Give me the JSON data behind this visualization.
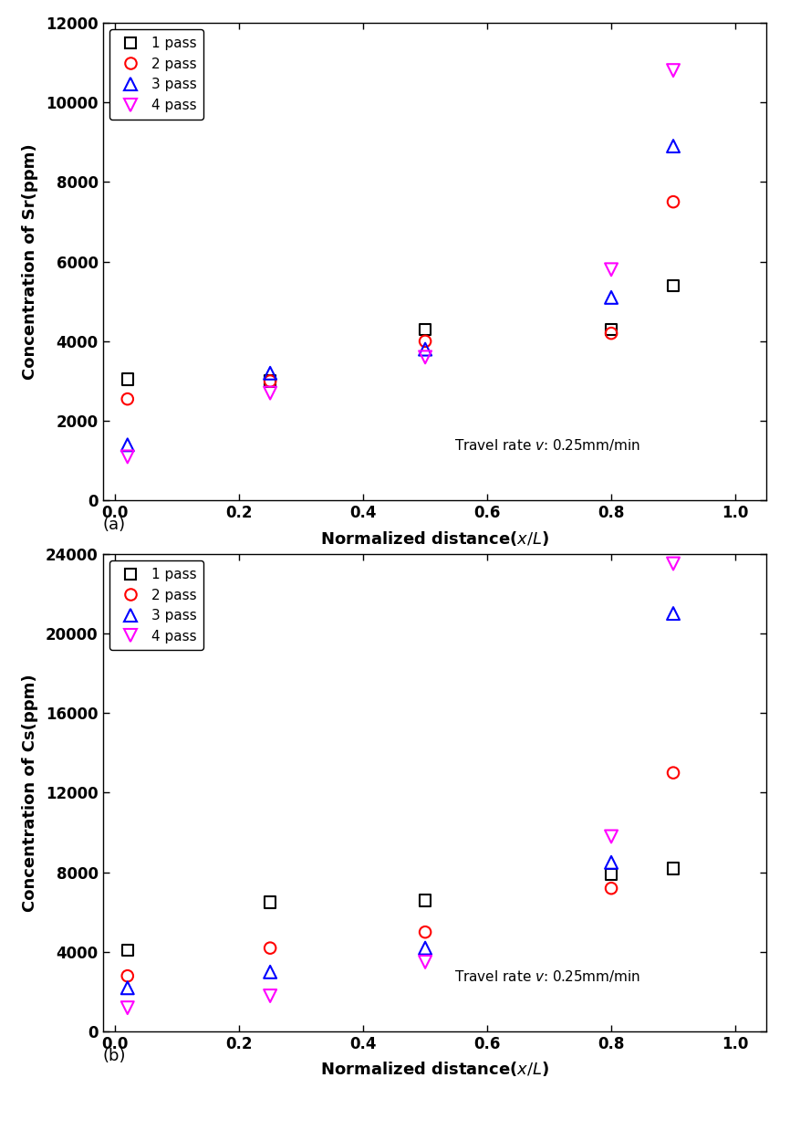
{
  "sr_data": {
    "pass1": {
      "x": [
        0.02,
        0.25,
        0.5,
        0.8,
        0.9
      ],
      "y": [
        3050,
        3000,
        4300,
        4300,
        5400
      ]
    },
    "pass2": {
      "x": [
        0.02,
        0.25,
        0.5,
        0.8,
        0.9
      ],
      "y": [
        2550,
        3000,
        4000,
        4200,
        7500
      ]
    },
    "pass3": {
      "x": [
        0.02,
        0.25,
        0.5,
        0.8,
        0.9
      ],
      "y": [
        1400,
        3200,
        3800,
        5100,
        8900
      ]
    },
    "pass4": {
      "x": [
        0.02,
        0.25,
        0.5,
        0.8,
        0.9
      ],
      "y": [
        1100,
        2700,
        3600,
        5800,
        10800
      ]
    }
  },
  "cs_data": {
    "pass1": {
      "x": [
        0.02,
        0.25,
        0.5,
        0.8,
        0.9
      ],
      "y": [
        4100,
        6500,
        6600,
        7900,
        8200
      ]
    },
    "pass2": {
      "x": [
        0.02,
        0.25,
        0.5,
        0.8,
        0.9
      ],
      "y": [
        2800,
        4200,
        5000,
        7200,
        13000
      ]
    },
    "pass3": {
      "x": [
        0.02,
        0.25,
        0.5,
        0.8,
        0.9
      ],
      "y": [
        2200,
        3000,
        4200,
        8500,
        21000
      ]
    },
    "pass4": {
      "x": [
        0.02,
        0.25,
        0.5,
        0.8,
        0.9
      ],
      "y": [
        1200,
        1800,
        3500,
        9800,
        23500
      ]
    }
  },
  "colors": [
    "black",
    "red",
    "blue",
    "magenta"
  ],
  "markers": [
    "s",
    "o",
    "^",
    "v"
  ],
  "marker_sizes": [
    9,
    9,
    10,
    10
  ],
  "legend_labels": [
    "1 pass",
    "2 pass",
    "3 pass",
    "4 pass"
  ],
  "sr_ylabel": "Concentration of Sr(ppm)",
  "cs_ylabel": "Concentration of Cs(ppm)",
  "sr_ylim": [
    0,
    12000
  ],
  "cs_ylim": [
    0,
    24000
  ],
  "sr_yticks": [
    0,
    2000,
    4000,
    6000,
    8000,
    10000,
    12000
  ],
  "cs_yticks": [
    0,
    4000,
    8000,
    12000,
    16000,
    20000,
    24000
  ],
  "xlim": [
    -0.02,
    1.05
  ],
  "xticks": [
    0.0,
    0.2,
    0.4,
    0.6,
    0.8,
    1.0
  ],
  "annotation": "Travel rate ",
  "annotation_v": "v",
  "annotation_end": ": 0.25mm/min",
  "label_a": "(a)",
  "label_b": "(b)"
}
